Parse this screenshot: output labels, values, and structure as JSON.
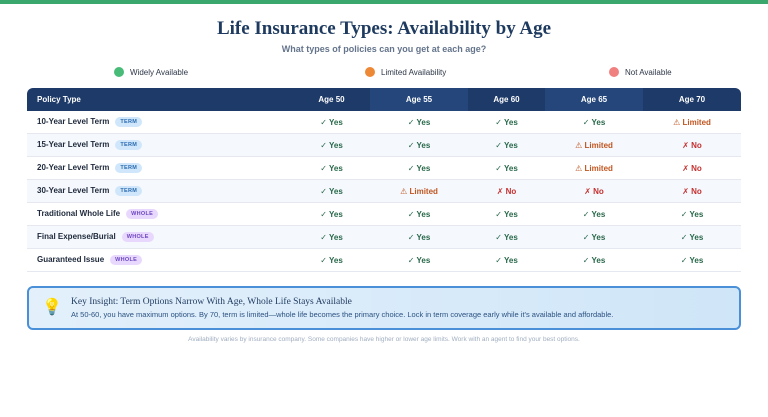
{
  "header": {
    "title": "Life Insurance Types: Availability by Age",
    "subtitle": "What types of policies can you get at each age?"
  },
  "legend": [
    "Widely Available",
    "Limited Availability",
    "Not Available"
  ],
  "table": {
    "columns": [
      "Policy Type",
      "Age 50",
      "Age 55",
      "Age 60",
      "Age 65",
      "Age 70"
    ],
    "rows": [
      {
        "name": "10-Year Level Term",
        "badge": "TERM",
        "cells": [
          "✓ Yes",
          "✓ Yes",
          "✓ Yes",
          "✓ Yes",
          "⚠ Limited"
        ]
      },
      {
        "name": "15-Year Level Term",
        "badge": "TERM",
        "cells": [
          "✓ Yes",
          "✓ Yes",
          "✓ Yes",
          "⚠ Limited",
          "✗ No"
        ]
      },
      {
        "name": "20-Year Level Term",
        "badge": "TERM",
        "cells": [
          "✓ Yes",
          "✓ Yes",
          "✓ Yes",
          "⚠ Limited",
          "✗ No"
        ]
      },
      {
        "name": "30-Year Level Term",
        "badge": "TERM",
        "cells": [
          "✓ Yes",
          "⚠ Limited",
          "✗ No",
          "✗ No",
          "✗ No"
        ]
      },
      {
        "name": "Traditional Whole Life",
        "badge": "WHOLE",
        "cells": [
          "✓ Yes",
          "✓ Yes",
          "✓ Yes",
          "✓ Yes",
          "✓ Yes"
        ]
      },
      {
        "name": "Final Expense/Burial",
        "badge": "WHOLE",
        "cells": [
          "✓ Yes",
          "✓ Yes",
          "✓ Yes",
          "✓ Yes",
          "✓ Yes"
        ]
      },
      {
        "name": "Guaranteed Issue",
        "badge": "WHOLE",
        "cells": [
          "✓ Yes",
          "✓ Yes",
          "✓ Yes",
          "✓ Yes",
          "✓ Yes"
        ]
      }
    ]
  },
  "insight": {
    "icon": "💡",
    "title": "Key Insight: Term Options Narrow With Age, Whole Life Stays Available",
    "text": "At 50-60, you have maximum options. By 70, term is limited—whole life becomes the primary choice. Lock in term coverage early while it's available and affordable."
  },
  "footer": "Availability varies by insurance company. Some companies have higher or lower age limits. Work with an agent to find your best options."
}
